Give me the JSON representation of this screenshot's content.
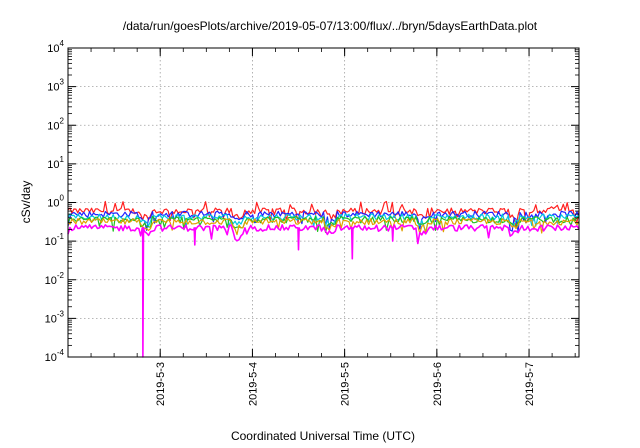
{
  "chart_data": {
    "type": "area",
    "title": "/data/run/goesPlots/archive/2019-05-07/13:00/flux/../bryn/5daysEarthData.plot",
    "xlabel": "Coordinated Universal Time (UTC)",
    "ylabel": "cSv/day",
    "yscale": "log",
    "ylim": [
      0.0001,
      10000
    ],
    "xlim": [
      "2019-05-02 00:00",
      "2019-05-07 13:00"
    ],
    "grid": true,
    "legend": "none",
    "x_ticks": [
      "2019-5-3",
      "2019-5-4",
      "2019-5-5",
      "2019-5-6",
      "2019-5-7"
    ],
    "y_ticks": [
      {
        "base": "10",
        "exp": "-4"
      },
      {
        "base": "10",
        "exp": "-3"
      },
      {
        "base": "10",
        "exp": "-2"
      },
      {
        "base": "10",
        "exp": "-1"
      },
      {
        "base": "10",
        "exp": "0"
      },
      {
        "base": "10",
        "exp": "1"
      },
      {
        "base": "10",
        "exp": "2"
      },
      {
        "base": "10",
        "exp": "3"
      },
      {
        "base": "10",
        "exp": "4"
      }
    ],
    "series": [
      {
        "color": "#ff2020",
        "approx_level": 0.6
      },
      {
        "color": "#2020ff",
        "approx_level": 0.5
      },
      {
        "color": "#00c8e0",
        "approx_level": 0.42
      },
      {
        "color": "#20c020",
        "approx_level": 0.36
      },
      {
        "color": "#e0a000",
        "approx_level": 0.32
      },
      {
        "color": "#ff00ff",
        "approx_level": 0.22,
        "dropouts": [
          {
            "x": "2019-05-02 19:30",
            "y": 0.0001
          },
          {
            "x": "2019-05-03 09:00",
            "y": 0.08
          },
          {
            "x": "2019-05-04 12:00",
            "y": 0.06
          },
          {
            "x": "2019-05-05 02:00",
            "y": 0.035
          },
          {
            "x": "2019-05-05 12:30",
            "y": 0.1
          }
        ]
      }
    ]
  }
}
